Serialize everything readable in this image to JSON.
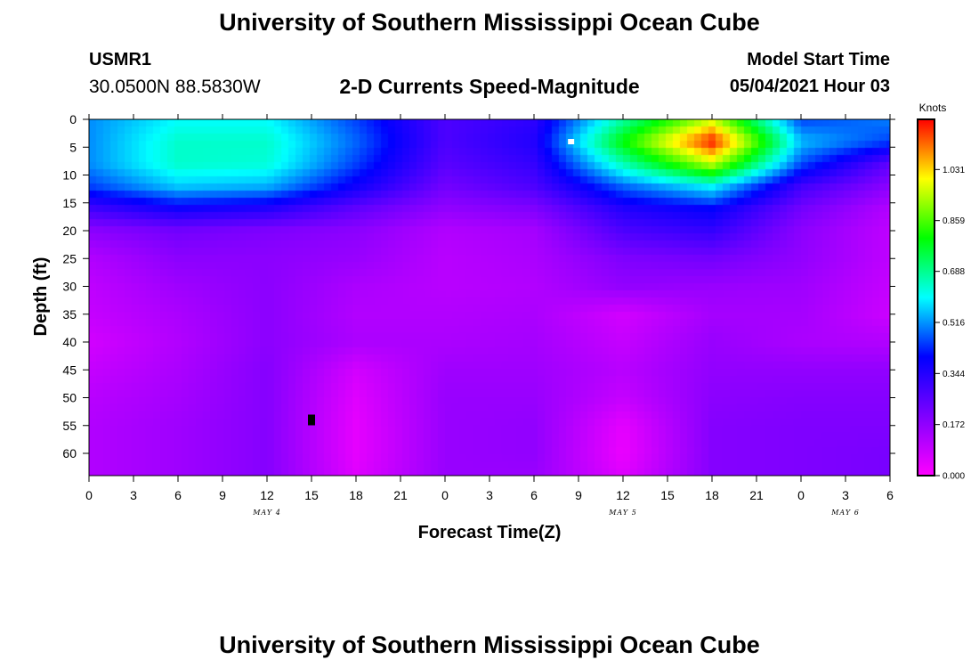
{
  "header": {
    "title": "University of Southern Mississippi Ocean Cube",
    "station_id": "USMR1",
    "coordinates": "30.0500N  88.5830W",
    "subtitle": "2-D Currents Speed-Magnitude",
    "model_start_label": "Model Start Time",
    "model_start_value": "05/04/2021 Hour 03"
  },
  "footer": {
    "title": "University of Southern Mississippi Ocean Cube"
  },
  "colors": {
    "colormap": [
      "#ff00ff",
      "#7f00ff",
      "#0000ff",
      "#00ffff",
      "#00ff00",
      "#ffff00",
      "#ff0000"
    ]
  },
  "chart_data": {
    "type": "heatmap",
    "title": "2-D Currents Speed-Magnitude",
    "xlabel": "Forecast Time(Z)",
    "ylabel": "Depth (ft)",
    "x_range_hours": [
      0,
      54
    ],
    "y_range_ft": [
      0,
      64
    ],
    "y_inverted": true,
    "xticks": [
      "0",
      "3",
      "6",
      "9",
      "12",
      "15",
      "18",
      "21",
      "0",
      "3",
      "6",
      "9",
      "12",
      "15",
      "18",
      "21",
      "0",
      "3",
      "6"
    ],
    "yticks": [
      "0",
      "5",
      "10",
      "15",
      "20",
      "25",
      "30",
      "35",
      "40",
      "45",
      "50",
      "55",
      "60"
    ],
    "day_labels": [
      {
        "label": "MAY 4",
        "hour": 12
      },
      {
        "label": "MAY 5",
        "hour": 36
      },
      {
        "label": "MAY 6",
        "hour": 51
      }
    ],
    "colorbar": {
      "unit": "Knots",
      "ticks": [
        "0.000",
        "0.172",
        "0.344",
        "0.516",
        "0.688",
        "0.859",
        "1.031"
      ],
      "range": [
        0,
        1.2
      ]
    },
    "markers": [
      {
        "hour": 15,
        "depth_ft": 54,
        "color": "#000000"
      },
      {
        "hour": 32.5,
        "depth_ft": 4,
        "color": "#ffffff"
      }
    ],
    "grid": {
      "hours": [
        0,
        6,
        12,
        18,
        24,
        30,
        36,
        42,
        48,
        54
      ],
      "depths_ft": [
        0,
        4,
        8,
        12,
        16,
        20,
        25,
        30,
        35,
        40,
        45,
        50,
        55,
        60,
        64
      ],
      "values": [
        [
          0.51,
          0.6,
          0.6,
          0.45,
          0.28,
          0.33,
          0.67,
          0.95,
          0.45,
          0.5
        ],
        [
          0.51,
          0.64,
          0.64,
          0.48,
          0.28,
          0.35,
          0.8,
          1.18,
          0.55,
          0.45
        ],
        [
          0.51,
          0.64,
          0.63,
          0.45,
          0.26,
          0.32,
          0.66,
          0.95,
          0.46,
          0.25
        ],
        [
          0.45,
          0.56,
          0.54,
          0.38,
          0.22,
          0.28,
          0.48,
          0.6,
          0.3,
          0.18
        ],
        [
          0.3,
          0.38,
          0.35,
          0.25,
          0.17,
          0.2,
          0.35,
          0.4,
          0.22,
          0.12
        ],
        [
          0.18,
          0.22,
          0.2,
          0.18,
          0.12,
          0.14,
          0.28,
          0.32,
          0.18,
          0.1
        ],
        [
          0.12,
          0.18,
          0.18,
          0.16,
          0.11,
          0.13,
          0.2,
          0.22,
          0.17,
          0.1
        ],
        [
          0.1,
          0.15,
          0.18,
          0.13,
          0.11,
          0.12,
          0.17,
          0.16,
          0.15,
          0.09
        ],
        [
          0.09,
          0.13,
          0.18,
          0.12,
          0.12,
          0.13,
          0.07,
          0.14,
          0.14,
          0.08
        ],
        [
          0.07,
          0.12,
          0.18,
          0.13,
          0.13,
          0.14,
          0.09,
          0.16,
          0.13,
          0.12
        ],
        [
          0.09,
          0.13,
          0.19,
          0.07,
          0.15,
          0.15,
          0.11,
          0.17,
          0.17,
          0.17
        ],
        [
          0.11,
          0.14,
          0.19,
          0.05,
          0.16,
          0.16,
          0.09,
          0.18,
          0.19,
          0.19
        ],
        [
          0.12,
          0.15,
          0.19,
          0.04,
          0.16,
          0.17,
          0.04,
          0.19,
          0.2,
          0.2
        ],
        [
          0.12,
          0.15,
          0.19,
          0.04,
          0.16,
          0.17,
          0.03,
          0.19,
          0.2,
          0.21
        ],
        [
          0.12,
          0.15,
          0.19,
          0.05,
          0.16,
          0.16,
          0.05,
          0.19,
          0.2,
          0.21
        ]
      ]
    }
  }
}
